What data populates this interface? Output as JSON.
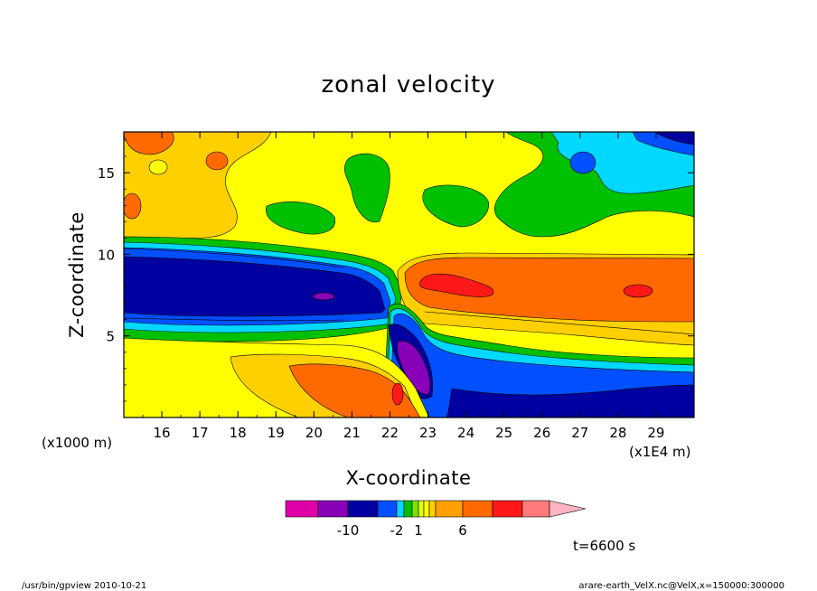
{
  "chart_data": {
    "type": "heatmap",
    "title": "zonal velocity",
    "xlabel": "X-coordinate",
    "ylabel": "Z-coordinate",
    "x_unit_left": "(x1000 m)",
    "x_unit_right": "(x1E4 m)",
    "x_ticks": [
      16,
      17,
      18,
      19,
      20,
      21,
      22,
      23,
      24,
      25,
      26,
      27,
      28,
      29
    ],
    "x_tick_labels": [
      "16",
      "17",
      "18",
      "19",
      "20",
      "21",
      "22",
      "23",
      "24",
      "25",
      "26",
      "27",
      "28",
      "29"
    ],
    "xlim": [
      15,
      30
    ],
    "y_ticks": [
      5,
      10,
      15
    ],
    "y_tick_labels": [
      "5",
      "10",
      "15"
    ],
    "ylim": [
      0,
      17.5
    ],
    "time_label": "t=6600 s",
    "colorbar": {
      "colors": [
        "#e000a8",
        "#8800b8",
        "#0000a0",
        "#0050ff",
        "#00d8ff",
        "#00c000",
        "#80e000",
        "#e0ff00",
        "#ffff00",
        "#ffd000",
        "#ffa000",
        "#ff6a00",
        "#ff1818",
        "#ff7a7a",
        "#ffb4c0"
      ],
      "labels": [
        {
          "text": "-10",
          "value": -10
        },
        {
          "text": "-2",
          "value": -2
        },
        {
          "text": "1",
          "value": 1
        },
        {
          "text": "6",
          "value": 6
        }
      ]
    },
    "regions": [
      {
        "name": "upper-left-warm-band",
        "value": 3,
        "color": "#ffd000"
      },
      {
        "name": "upper-yellow-field",
        "value": 1,
        "color": "#ffff00"
      },
      {
        "name": "mid-level-westward-jet",
        "value": -8,
        "color": "#0000a0"
      },
      {
        "name": "eastern-easterly-jet",
        "value": 5,
        "color": "#ff6a00"
      },
      {
        "name": "lee-side-downslope-flow",
        "value": -10,
        "color": "#8800b8"
      },
      {
        "name": "low-level-eastern-flow",
        "value": -4,
        "color": "#0050ff"
      },
      {
        "name": "low-level-western-warm-flow",
        "value": 4,
        "color": "#ff6a00"
      }
    ]
  },
  "footer": {
    "left": "/usr/bin/gpview   2010-10-21",
    "right": "arare-earth_VelX.nc@VelX,x=150000:300000"
  }
}
